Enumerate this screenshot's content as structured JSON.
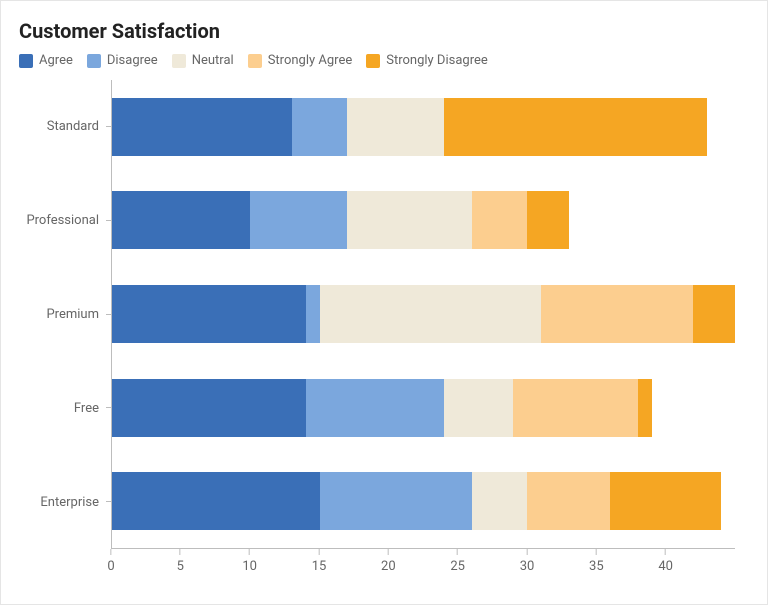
{
  "title": "Customer Satisfaction",
  "legend": [
    {
      "label": "Agree",
      "color": "#3a6fb7"
    },
    {
      "label": "Disagree",
      "color": "#7ba7dd"
    },
    {
      "label": "Neutral",
      "color": "#efe9d9"
    },
    {
      "label": "Strongly Agree",
      "color": "#fcce8f"
    },
    {
      "label": "Strongly Disagree",
      "color": "#f5a623"
    }
  ],
  "chart": {
    "type": "bar-horizontal-stacked",
    "background_color": "#ffffff",
    "axis_color": "#bdbdbd",
    "label_color": "#666666",
    "title_fontsize_pt": 15,
    "label_fontsize_pt": 10,
    "bar_height_ratio": 0.62,
    "x": {
      "min": 0,
      "max": 45,
      "tick_step": 5,
      "ticks": [
        0,
        5,
        10,
        15,
        20,
        25,
        30,
        35,
        40
      ]
    },
    "categories": [
      "Standard",
      "Professional",
      "Premium",
      "Free",
      "Enterprise"
    ],
    "series_order": [
      "Agree",
      "Disagree",
      "Neutral",
      "Strongly Agree",
      "Strongly Disagree"
    ],
    "series_colors": {
      "Agree": "#3a6fb7",
      "Disagree": "#7ba7dd",
      "Neutral": "#efe9d9",
      "Strongly Agree": "#fcce8f",
      "Strongly Disagree": "#f5a623"
    },
    "data": {
      "Standard": {
        "Agree": 13,
        "Disagree": 4,
        "Neutral": 7,
        "Strongly Agree": 0,
        "Strongly Disagree": 19
      },
      "Professional": {
        "Agree": 10,
        "Disagree": 7,
        "Neutral": 9,
        "Strongly Agree": 4,
        "Strongly Disagree": 3
      },
      "Premium": {
        "Agree": 14,
        "Disagree": 1,
        "Neutral": 16,
        "Strongly Agree": 11,
        "Strongly Disagree": 3
      },
      "Free": {
        "Agree": 14,
        "Disagree": 10,
        "Neutral": 5,
        "Strongly Agree": 9,
        "Strongly Disagree": 1
      },
      "Enterprise": {
        "Agree": 15,
        "Disagree": 11,
        "Neutral": 4,
        "Strongly Agree": 6,
        "Strongly Disagree": 8
      }
    }
  }
}
